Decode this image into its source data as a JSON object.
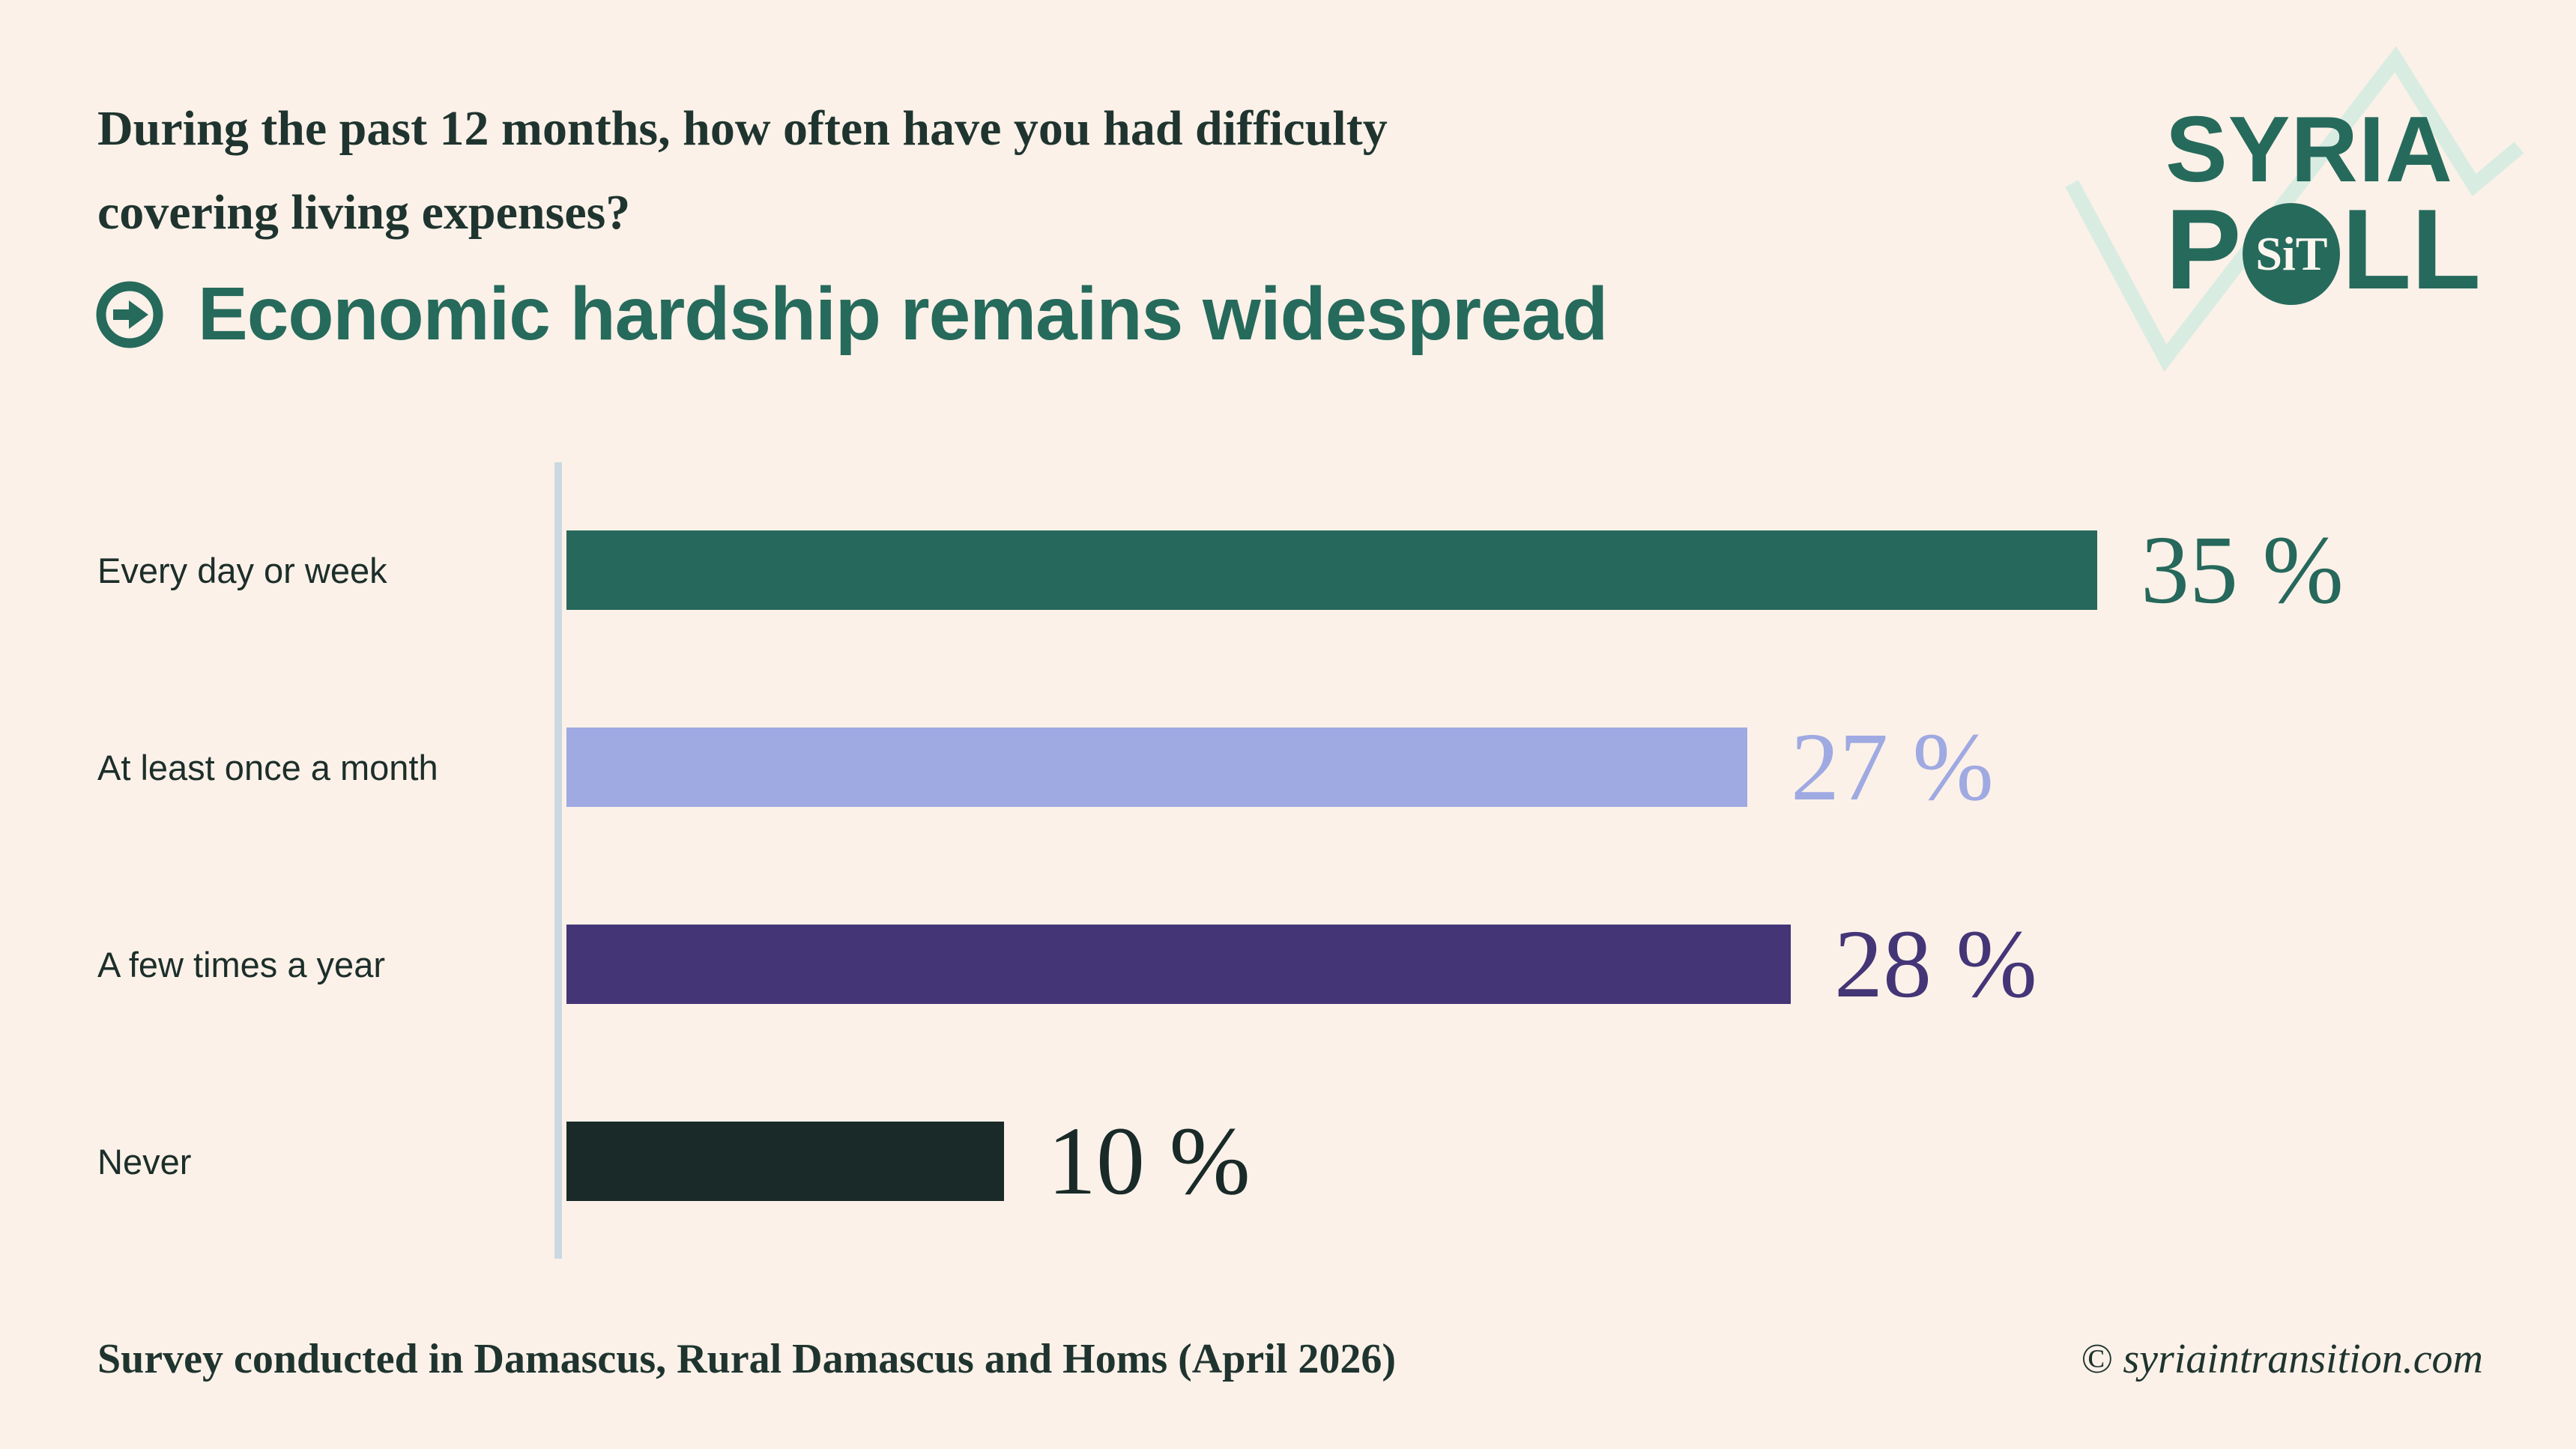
{
  "colors": {
    "background": "#FBF1E8",
    "ink": "#1F342F",
    "label": "#1C2E2A",
    "accent": "#266A5C",
    "mint": "#D9ECE2",
    "axis": "#CBD8E1",
    "badge-text": "#FDF6EF"
  },
  "question": {
    "line1": "During the past 12 months, how often have you had difficulty",
    "line2": "covering living expenses?"
  },
  "headline": {
    "text": "Economic hardship remains widespread",
    "color": "#266A5C",
    "icon": "arrow-right-circle-icon"
  },
  "logo": {
    "line1": "SYRIA",
    "line2_prefix": "P",
    "line2_suffix": "LL",
    "badge": "SiT",
    "color": "#266A5C",
    "zigzag_color": "#D9ECE2"
  },
  "chart_data": {
    "type": "bar",
    "orientation": "horizontal",
    "title": "Economic hardship remains widespread",
    "categories": [
      "Every day or week",
      "At least once a month",
      "A few times a year",
      "Never"
    ],
    "values": [
      35,
      27,
      28,
      10
    ],
    "value_labels": [
      "35 %",
      "27 %",
      "28 %",
      "10 %"
    ],
    "bar_colors": [
      "#26685B",
      "#9FA9E2",
      "#443577",
      "#192A28"
    ],
    "label_colors": [
      "#26685B",
      "#9FA9E2",
      "#443577",
      "#192A28"
    ],
    "xlim": [
      0,
      35
    ],
    "unit": "%",
    "grid": false,
    "legend": false,
    "axis_color": "#CBD8E1"
  },
  "footer": {
    "left": "Survey conducted in Damascus, Rural Damascus and Homs (April 2026)",
    "right": "© syriaintransition.com"
  }
}
